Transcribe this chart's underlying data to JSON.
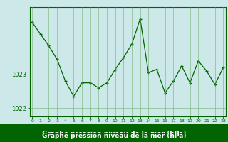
{
  "x": [
    0,
    1,
    2,
    3,
    4,
    5,
    6,
    7,
    8,
    9,
    10,
    11,
    12,
    13,
    14,
    15,
    16,
    17,
    18,
    19,
    20,
    21,
    22,
    23
  ],
  "y": [
    1024.55,
    1024.2,
    1023.85,
    1023.45,
    1022.8,
    1022.35,
    1022.75,
    1022.75,
    1022.6,
    1022.75,
    1023.15,
    1023.5,
    1023.9,
    1024.65,
    1023.05,
    1023.15,
    1022.45,
    1022.8,
    1023.25,
    1022.75,
    1023.4,
    1023.1,
    1022.7,
    1023.2
  ],
  "line_color": "#006400",
  "marker": "+",
  "bg_color": "#cce8e8",
  "plot_bg_color": "#cce8e8",
  "grid_color": "#66aa66",
  "xlabel": "Graphe pression niveau de la mer (hPa)",
  "xlabel_color": "#006400",
  "xlabel_bg": "#006400",
  "xlabel_text_color": "#ffffff",
  "tick_color": "#006400",
  "yticks": [
    1022,
    1023
  ],
  "ylim": [
    1021.75,
    1025.0
  ],
  "xlim": [
    -0.3,
    23.3
  ]
}
